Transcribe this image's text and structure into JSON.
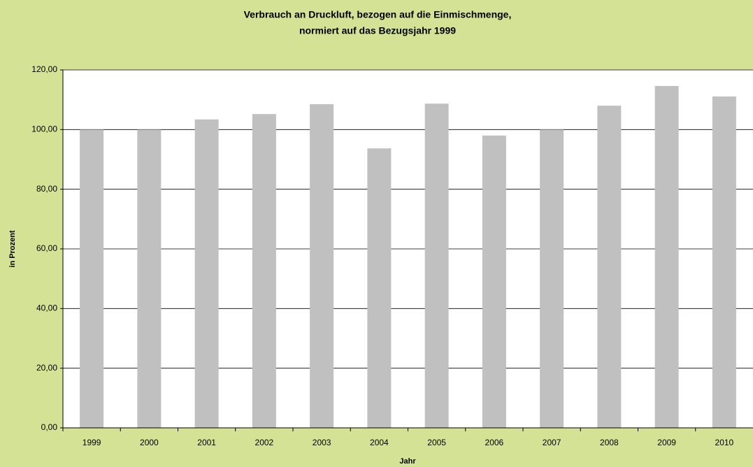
{
  "chart_data": {
    "type": "bar",
    "title": [
      "Verbrauch an Druckluft, bezogen auf die Einmischmenge,",
      "normiert auf das Bezugsjahr 1999"
    ],
    "x_label": "Jahr",
    "y_label": "in Prozent",
    "categories": [
      "1999",
      "2000",
      "2001",
      "2002",
      "2003",
      "2004",
      "2005",
      "2006",
      "2007",
      "2008",
      "2009",
      "2010"
    ],
    "values": [
      100,
      100,
      103.4,
      105.2,
      108.5,
      93.7,
      108.7,
      98.0,
      100,
      108.0,
      114.6,
      111.1
    ],
    "color": "#c0c0c0",
    "ylim": [
      0,
      120
    ],
    "yticks": [
      {
        "value": 0,
        "label": "0,00"
      },
      {
        "value": 20,
        "label": "20,00"
      },
      {
        "value": 40,
        "label": "40,00"
      },
      {
        "value": 60,
        "label": "60,00"
      },
      {
        "value": 80,
        "label": "80,00"
      },
      {
        "value": 100,
        "label": "100,00"
      },
      {
        "value": 120,
        "label": "120,00"
      }
    ],
    "grid": true
  }
}
